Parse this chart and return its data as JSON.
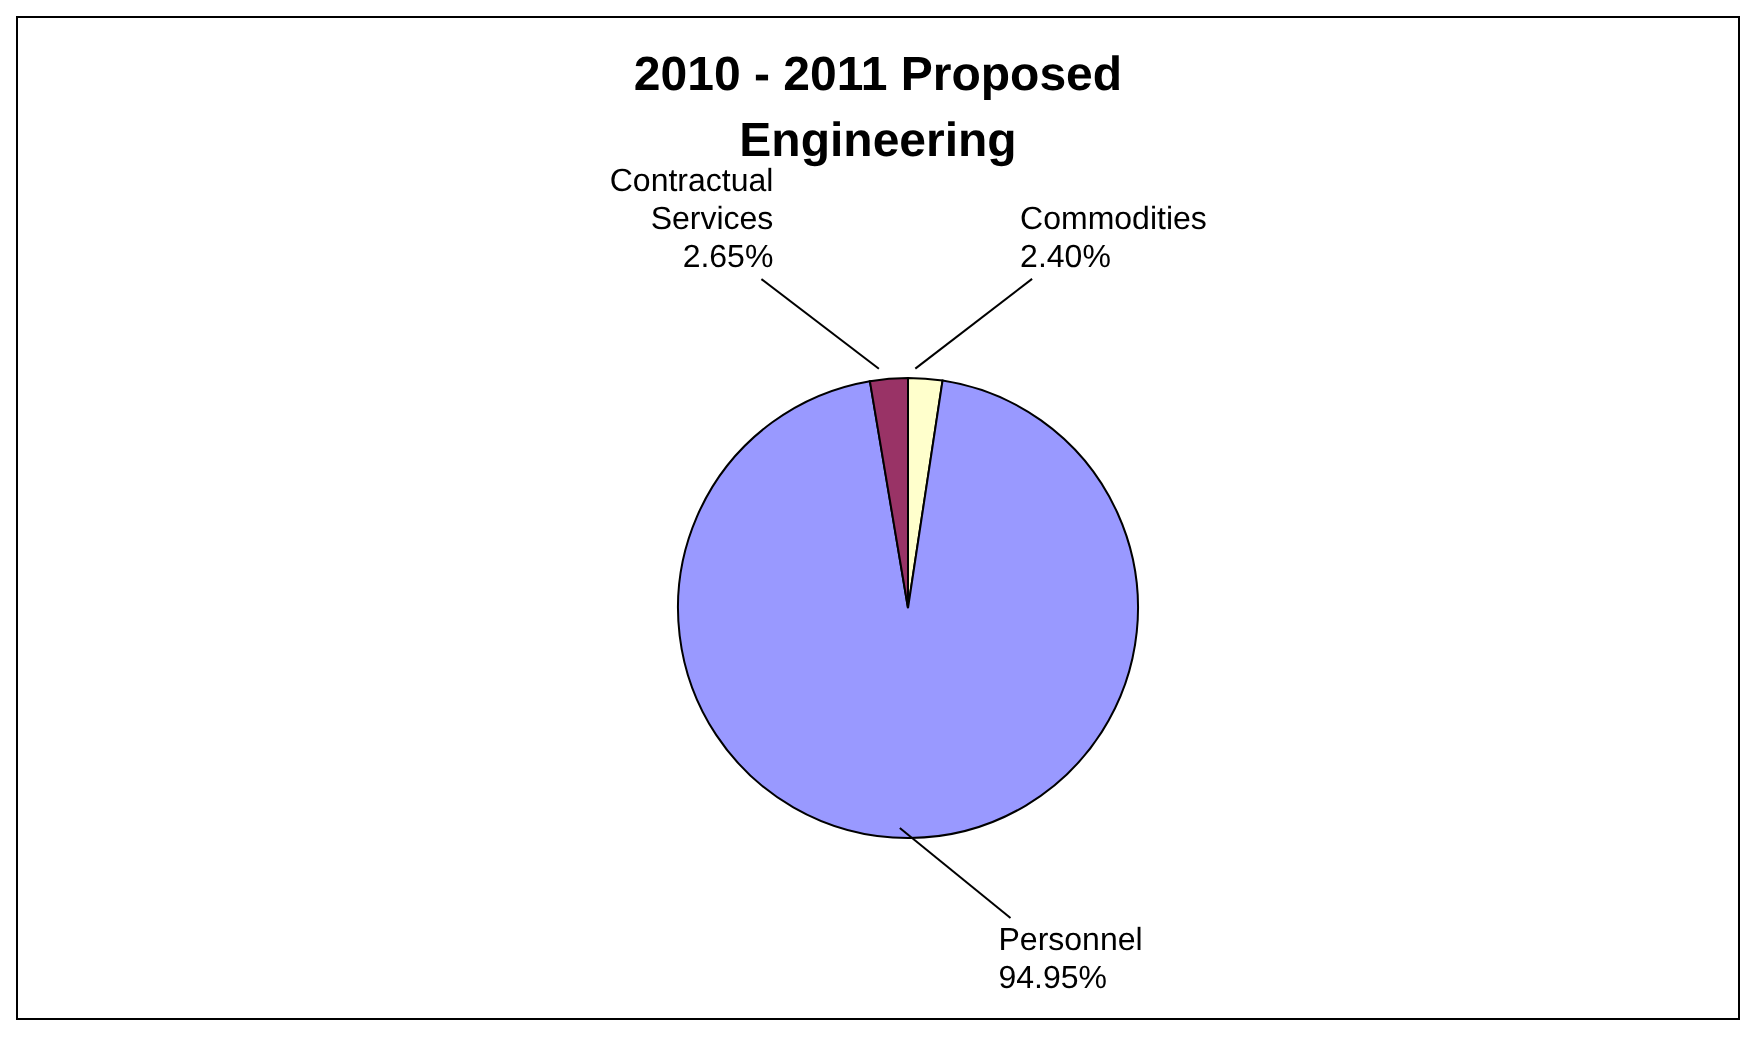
{
  "chart_data": {
    "type": "pie",
    "title": "2010 - 2011 Proposed Engineering",
    "categories": [
      "Commodities",
      "Personnel",
      "Contractual Services"
    ],
    "values": [
      2.4,
      94.95,
      2.65
    ],
    "value_labels": [
      "2.40%",
      "94.95%",
      "2.65%"
    ],
    "colors": [
      "#ffffcc",
      "#9999ff",
      "#993366"
    ],
    "legend": false
  }
}
